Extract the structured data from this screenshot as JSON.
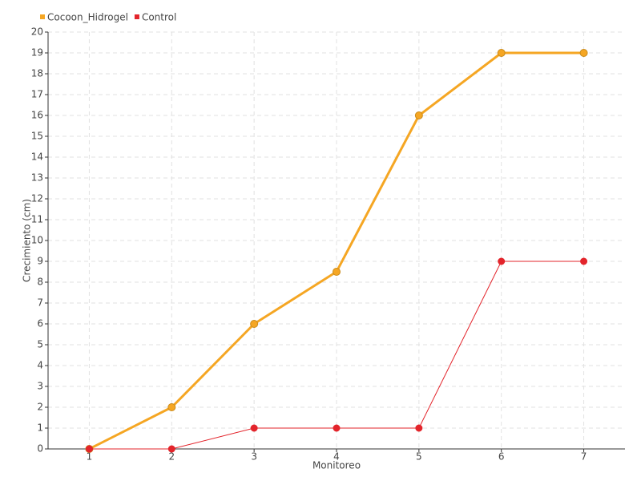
{
  "chart_data": {
    "type": "line",
    "x_label": "Monitoreo",
    "y_label": "Crecimiento (cm)",
    "categories": [
      "1",
      "2",
      "3",
      "4",
      "5",
      "6",
      "7"
    ],
    "series": [
      {
        "name": "Cocoon_Hidrogel",
        "color": "#f5a623",
        "values": [
          0,
          2,
          6,
          8.5,
          16,
          19,
          19
        ]
      },
      {
        "name": "Control",
        "color": "#e3242b",
        "values": [
          0,
          0,
          1,
          1,
          1,
          9,
          9
        ]
      }
    ],
    "ylim": [
      0,
      20
    ],
    "yticks": [
      0,
      1,
      2,
      3,
      4,
      5,
      6,
      7,
      8,
      9,
      10,
      11,
      12,
      13,
      14,
      15,
      16,
      17,
      18,
      19,
      20
    ],
    "grid": true,
    "legend": "top-left"
  }
}
